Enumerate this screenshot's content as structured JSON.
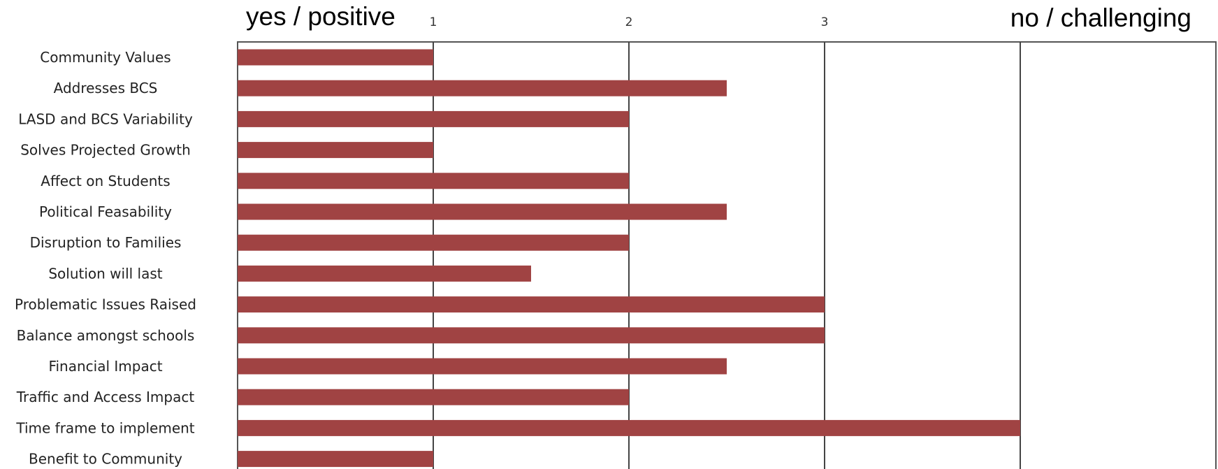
{
  "chart_data": {
    "type": "bar",
    "orientation": "horizontal",
    "categories": [
      "Community Values",
      "Addresses BCS",
      "LASD and BCS Variability",
      "Solves Projected Growth",
      "Affect on Students",
      "Political Feasability",
      "Disruption to Families",
      "Solution will last",
      "Problematic Issues Raised",
      "Balance amongst schools",
      "Financial Impact",
      "Traffic and Access Impact",
      "Time frame to implement",
      "Benefit to Community"
    ],
    "values": [
      1,
      2.5,
      2,
      1,
      2,
      2.5,
      2,
      1.5,
      3,
      3,
      2.5,
      2,
      4,
      1
    ],
    "xlim": [
      0,
      5
    ],
    "xticks": [
      "1",
      "2",
      "3"
    ],
    "xtick_values": [
      1,
      2,
      3
    ],
    "left_end_label": "yes / positive",
    "right_end_label": "no / challenging",
    "bar_color": "#a04343",
    "grid": true,
    "legend": "none"
  }
}
